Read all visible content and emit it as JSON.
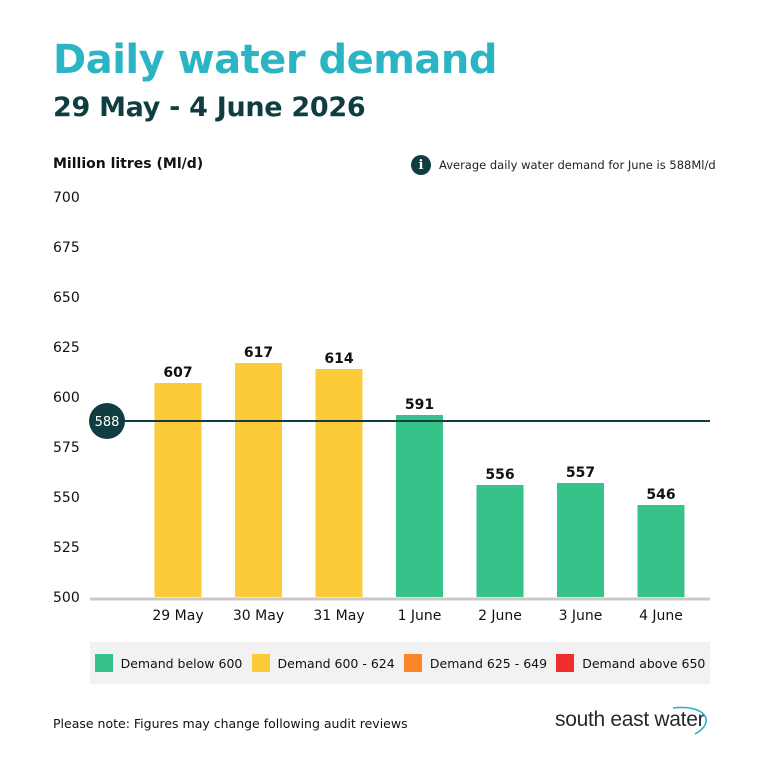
{
  "header": {
    "title": "Daily water demand",
    "subtitle": "29 May - 4 June 2026"
  },
  "info": {
    "icon": "info-icon",
    "text": "Average daily water demand for June is 588Ml/d"
  },
  "colors": {
    "title": "#2bb5c4",
    "subtitle": "#0f3d40",
    "below600": "#37c28a",
    "range600_624": "#fdcb3a",
    "range625_649": "#fb8627",
    "above650": "#f02c2c",
    "reference": "#0f3d40",
    "axis": "#c8c8c8"
  },
  "chart_data": {
    "type": "bar",
    "ylabel": "Million litres (Ml/d)",
    "ylim": [
      500,
      700
    ],
    "yticks": [
      700,
      675,
      650,
      625,
      600,
      575,
      550,
      525,
      500
    ],
    "categories": [
      "29 May",
      "30 May",
      "31 May",
      "1 June",
      "2 June",
      "3 June",
      "4 June"
    ],
    "values": [
      607,
      617,
      614,
      591,
      556,
      557,
      546
    ],
    "reference_line": {
      "value": 588,
      "label": "588"
    },
    "grid": false
  },
  "legend": {
    "items": [
      {
        "label": "Demand below 600",
        "color": "#37c28a"
      },
      {
        "label": "Demand 600 - 624",
        "color": "#fdcb3a"
      },
      {
        "label": "Demand 625 - 649",
        "color": "#fb8627"
      },
      {
        "label": "Demand above 650",
        "color": "#f02c2c"
      }
    ]
  },
  "footer": {
    "note": "Please note: Figures may change following audit reviews",
    "logo_text": "south east water"
  }
}
